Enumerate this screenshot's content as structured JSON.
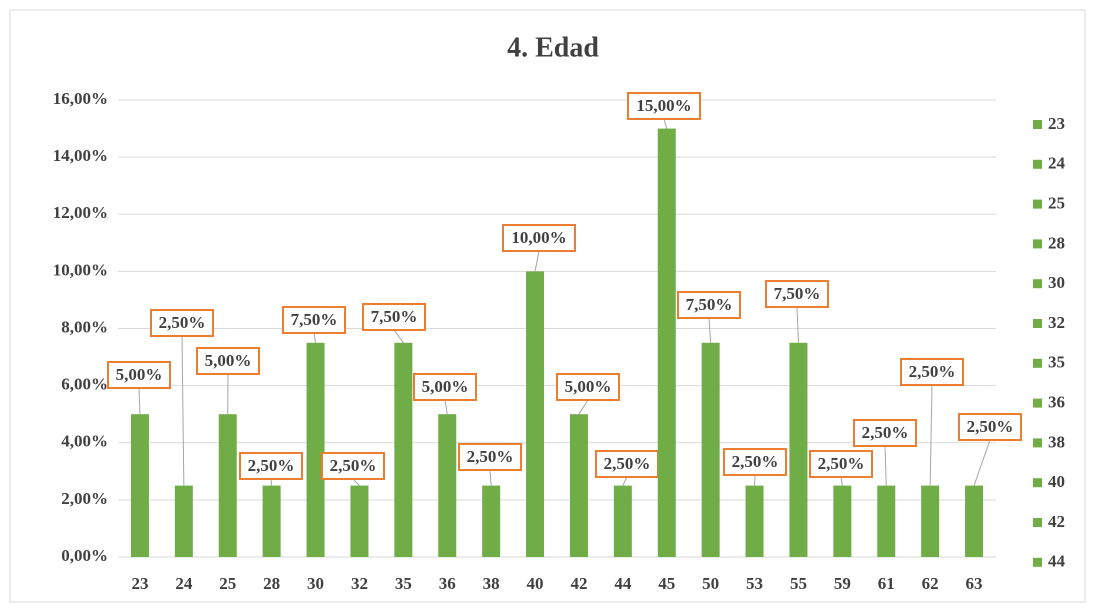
{
  "chart_data": {
    "type": "bar",
    "title": "4. Edad",
    "categories": [
      "23",
      "24",
      "25",
      "28",
      "30",
      "32",
      "35",
      "36",
      "38",
      "40",
      "42",
      "44",
      "45",
      "50",
      "53",
      "55",
      "59",
      "61",
      "62",
      "63"
    ],
    "values": [
      5,
      2.5,
      5,
      2.5,
      7.5,
      2.5,
      7.5,
      5,
      2.5,
      10,
      5,
      2.5,
      15,
      7.5,
      2.5,
      7.5,
      2.5,
      2.5,
      2.5,
      2.5
    ],
    "value_labels": [
      "5,00%",
      "2,50%",
      "5,00%",
      "2,50%",
      "7,50%",
      "2,50%",
      "7,50%",
      "5,00%",
      "2,50%",
      "10,00%",
      "5,00%",
      "2,50%",
      "15,00%",
      "7,50%",
      "2,50%",
      "7,50%",
      "2,50%",
      "2,50%",
      "2,50%",
      "2,50%"
    ],
    "color": "#70ad47",
    "label_border_color": "#ed7d31",
    "ylim": [
      0,
      16
    ],
    "yticks": [
      {
        "value": 0,
        "label": "0,00%"
      },
      {
        "value": 2,
        "label": "2,00%"
      },
      {
        "value": 4,
        "label": "4,00%"
      },
      {
        "value": 6,
        "label": "6,00%"
      },
      {
        "value": 8,
        "label": "8,00%"
      },
      {
        "value": 10,
        "label": "10,00%"
      },
      {
        "value": 12,
        "label": "12,00%"
      },
      {
        "value": 14,
        "label": "14,00%"
      },
      {
        "value": 16,
        "label": "16,00%"
      }
    ],
    "grid": true,
    "legend": "right"
  }
}
